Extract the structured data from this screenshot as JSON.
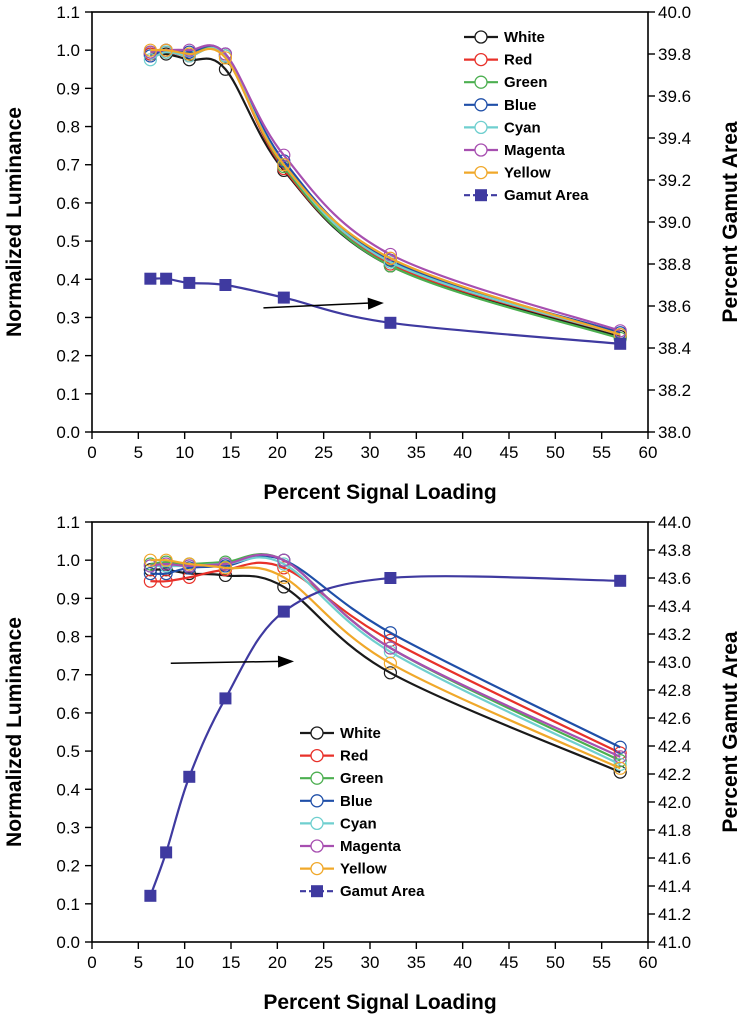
{
  "colors": {
    "White": "#1a1a1a",
    "Red": "#e8312a",
    "Green": "#4caf50",
    "Blue": "#1f4fa8",
    "Cyan": "#6fcfcf",
    "Magenta": "#a74fb0",
    "Yellow": "#f0a82a",
    "Gamut Area": "#3f3aa0"
  },
  "chart_data": [
    {
      "type": "line",
      "x": [
        6.3,
        8.0,
        10.5,
        14.4,
        20.7,
        32.2,
        57.0
      ],
      "xlabel": "Percent Signal Loading",
      "ylabel": "Normalized Luminance",
      "y2label": "Percent Gamut Area",
      "xlim": [
        0,
        60
      ],
      "ylim": [
        0.0,
        1.1
      ],
      "y2lim": [
        38.0,
        40.0
      ],
      "xticks": [
        "0",
        "5",
        "10",
        "15",
        "20",
        "25",
        "30",
        "35",
        "40",
        "45",
        "50",
        "55",
        "60"
      ],
      "yticks": [
        "0.0",
        "0.1",
        "0.2",
        "0.3",
        "0.4",
        "0.5",
        "0.6",
        "0.7",
        "0.8",
        "0.9",
        "1.0",
        "1.1"
      ],
      "y2ticks": [
        "38.0",
        "38.2",
        "38.4",
        "38.6",
        "38.8",
        "39.0",
        "39.2",
        "39.4",
        "39.6",
        "39.8",
        "40.0"
      ],
      "legend_position": "top-right",
      "series": [
        {
          "name": "White",
          "values": [
            0.99,
            0.99,
            0.975,
            0.95,
            0.685,
            0.435,
            0.25
          ]
        },
        {
          "name": "Red",
          "values": [
            0.99,
            0.995,
            0.985,
            0.985,
            0.69,
            0.44,
            0.255
          ]
        },
        {
          "name": "Green",
          "values": [
            0.995,
            0.995,
            0.99,
            0.985,
            0.695,
            0.435,
            0.245
          ]
        },
        {
          "name": "Blue",
          "values": [
            0.985,
            1.0,
            0.995,
            0.99,
            0.71,
            0.45,
            0.26
          ]
        },
        {
          "name": "Cyan",
          "values": [
            0.975,
            0.995,
            0.985,
            0.985,
            0.7,
            0.445,
            0.255
          ]
        },
        {
          "name": "Magenta",
          "values": [
            0.995,
            1.0,
            1.0,
            0.99,
            0.725,
            0.465,
            0.265
          ]
        },
        {
          "name": "Yellow",
          "values": [
            1.0,
            1.0,
            0.99,
            0.98,
            0.7,
            0.455,
            0.255
          ]
        }
      ],
      "gamut_series": {
        "name": "Gamut Area",
        "values": [
          38.73,
          38.73,
          38.71,
          38.7,
          38.64,
          38.52,
          38.42
        ]
      },
      "arrow": {
        "from": [
          18.5,
          0.325
        ],
        "to": [
          31.5,
          0.338
        ]
      }
    },
    {
      "type": "line",
      "x": [
        6.3,
        8.0,
        10.5,
        14.4,
        20.7,
        32.2,
        57.0
      ],
      "xlabel": "Percent Signal Loading",
      "ylabel": "Normalized Luminance",
      "y2label": "Percent Gamut Area",
      "xlim": [
        0,
        60
      ],
      "ylim": [
        0.0,
        1.1
      ],
      "y2lim": [
        41.0,
        44.0
      ],
      "xticks": [
        "0",
        "5",
        "10",
        "15",
        "20",
        "25",
        "30",
        "35",
        "40",
        "45",
        "50",
        "55",
        "60"
      ],
      "yticks": [
        "0.0",
        "0.1",
        "0.2",
        "0.3",
        "0.4",
        "0.5",
        "0.6",
        "0.7",
        "0.8",
        "0.9",
        "1.0",
        "1.1"
      ],
      "y2ticks": [
        "41.0",
        "41.2",
        "41.4",
        "41.6",
        "41.8",
        "42.0",
        "42.2",
        "42.4",
        "42.6",
        "42.8",
        "43.0",
        "43.2",
        "43.4",
        "43.6",
        "43.8",
        "44.0"
      ],
      "legend_position": "bottom-center",
      "series": [
        {
          "name": "White",
          "values": [
            0.975,
            0.975,
            0.965,
            0.96,
            0.93,
            0.705,
            0.445
          ]
        },
        {
          "name": "Red",
          "values": [
            0.945,
            0.945,
            0.955,
            0.975,
            0.98,
            0.79,
            0.495
          ]
        },
        {
          "name": "Green",
          "values": [
            0.99,
            0.995,
            0.99,
            0.995,
            1.0,
            0.77,
            0.475
          ]
        },
        {
          "name": "Blue",
          "values": [
            0.965,
            0.965,
            0.98,
            0.985,
            1.0,
            0.81,
            0.51
          ]
        },
        {
          "name": "Cyan",
          "values": [
            0.985,
            0.985,
            0.985,
            0.99,
            0.99,
            0.76,
            0.465
          ]
        },
        {
          "name": "Magenta",
          "values": [
            0.985,
            0.99,
            0.985,
            0.99,
            1.0,
            0.77,
            0.485
          ]
        },
        {
          "name": "Yellow",
          "values": [
            1.0,
            1.0,
            0.99,
            0.98,
            0.955,
            0.73,
            0.455
          ]
        }
      ],
      "gamut_series": {
        "name": "Gamut Area",
        "values": [
          41.33,
          41.64,
          42.18,
          42.74,
          43.36,
          43.6,
          43.58
        ]
      },
      "arrow": {
        "from": [
          8.5,
          0.73
        ],
        "to": [
          21.8,
          0.735
        ]
      }
    }
  ]
}
